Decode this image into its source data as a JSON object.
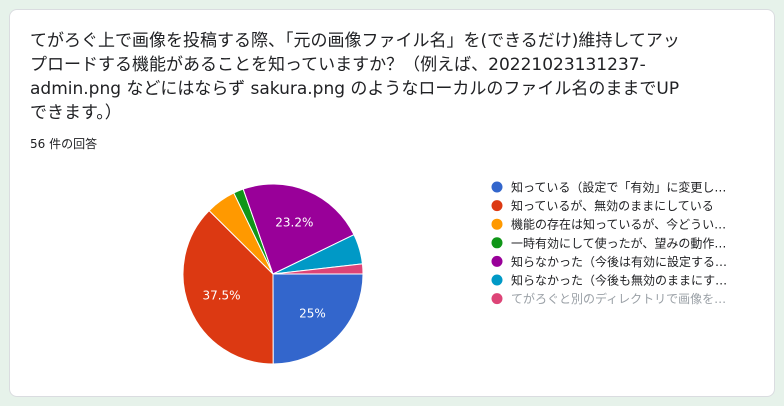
{
  "question": {
    "title": "てがろぐ上で画像を投稿する際、「元の画像ファイル名」を(できるだけ)維持してアップロードする機能があることを知っていますか？（例えば、20221023131237-admin.png などにはならず sakura.png のようなローカルのファイル名のままでUPできます。）",
    "response_count": "56 件の回答"
  },
  "chart_data": {
    "type": "pie",
    "title": "",
    "series": [
      {
        "name": "知っている（設定で「有効」に変更し…",
        "value": 25.0,
        "color": "#3366cc",
        "label": "25%"
      },
      {
        "name": "知っているが、無効のままにしている",
        "value": 37.5,
        "color": "#dc3912",
        "label": "37.5%"
      },
      {
        "name": "機能の存在は知っているが、今どうい…",
        "value": 5.4,
        "color": "#ff9900",
        "label": ""
      },
      {
        "name": "一時有効にして使ったが、望みの動作…",
        "value": 1.8,
        "color": "#109618",
        "label": ""
      },
      {
        "name": "知らなかった（今後は有効に設定する…",
        "value": 23.2,
        "color": "#990099",
        "label": "23.2%"
      },
      {
        "name": "知らなかった（今後も無効のままにす…",
        "value": 5.4,
        "color": "#0099c6",
        "label": ""
      },
      {
        "name": "てがろぐと別のディレクトリで画像を…",
        "value": 1.8,
        "color": "#dd4477",
        "label": "",
        "muted": true
      }
    ],
    "legend_position": "right"
  }
}
